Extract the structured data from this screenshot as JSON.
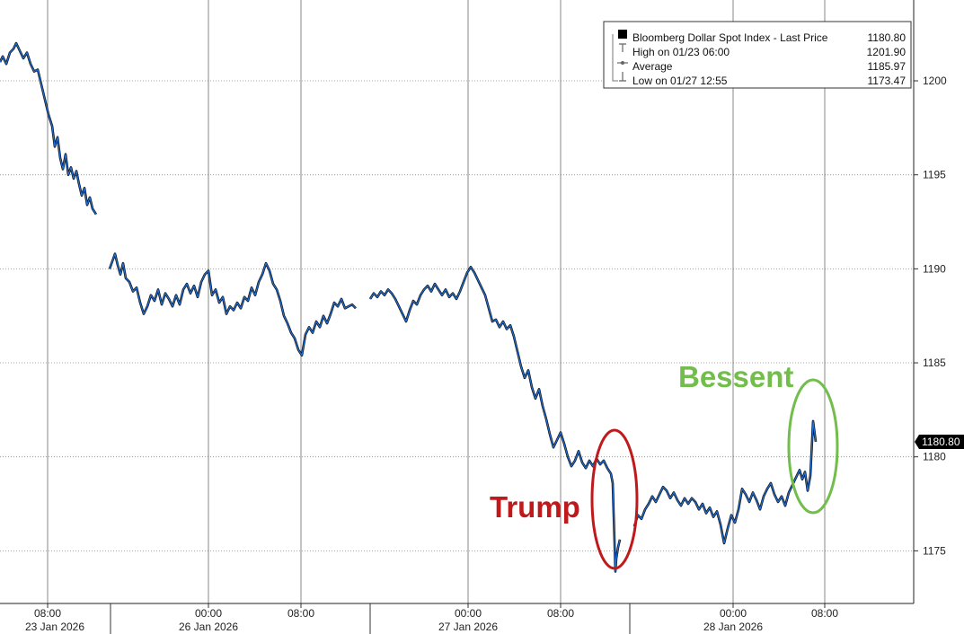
{
  "chart_data": {
    "type": "line",
    "series": [
      {
        "name": "Bloomberg Dollar Spot Index - Last Price",
        "color": "#1f6fd6",
        "segments": [
          [
            [
              0,
              1201.0
            ],
            [
              3,
              1201.3
            ],
            [
              7,
              1200.9
            ],
            [
              11,
              1201.5
            ],
            [
              15,
              1201.7
            ],
            [
              18,
              1202.0
            ],
            [
              22,
              1201.6
            ],
            [
              26,
              1201.2
            ],
            [
              30,
              1201.5
            ],
            [
              34,
              1200.9
            ],
            [
              38,
              1200.5
            ],
            [
              42,
              1200.6
            ],
            [
              46,
              1199.8
            ],
            [
              50,
              1199.0
            ],
            [
              54,
              1198.2
            ],
            [
              58,
              1197.6
            ],
            [
              61,
              1196.5
            ],
            [
              64,
              1197.0
            ],
            [
              67,
              1195.9
            ],
            [
              70,
              1195.3
            ],
            [
              73,
              1196.1
            ],
            [
              76,
              1195.0
            ],
            [
              79,
              1195.4
            ],
            [
              82,
              1194.8
            ],
            [
              85,
              1195.2
            ],
            [
              88,
              1194.5
            ],
            [
              91,
              1193.9
            ],
            [
              94,
              1194.3
            ],
            [
              97,
              1193.4
            ],
            [
              100,
              1193.8
            ],
            [
              103,
              1193.2
            ],
            [
              107,
              1192.9
            ]
          ],
          [
            [
              122,
              1190.0
            ],
            [
              125,
              1190.4
            ],
            [
              128,
              1190.8
            ],
            [
              131,
              1190.2
            ],
            [
              134,
              1189.7
            ],
            [
              137,
              1190.3
            ],
            [
              140,
              1189.5
            ],
            [
              144,
              1189.3
            ],
            [
              148,
              1188.8
            ],
            [
              152,
              1189.0
            ],
            [
              156,
              1188.2
            ],
            [
              160,
              1187.6
            ],
            [
              164,
              1188.0
            ],
            [
              168,
              1188.6
            ],
            [
              172,
              1188.3
            ],
            [
              176,
              1188.9
            ],
            [
              180,
              1188.1
            ],
            [
              184,
              1188.7
            ],
            [
              188,
              1188.4
            ],
            [
              192,
              1188.0
            ],
            [
              196,
              1188.6
            ],
            [
              200,
              1188.1
            ],
            [
              204,
              1188.9
            ],
            [
              208,
              1189.2
            ],
            [
              212,
              1188.7
            ],
            [
              216,
              1189.1
            ],
            [
              220,
              1188.5
            ],
            [
              224,
              1189.3
            ],
            [
              228,
              1189.7
            ],
            [
              232,
              1189.9
            ],
            [
              236,
              1188.6
            ],
            [
              240,
              1188.9
            ],
            [
              244,
              1188.2
            ],
            [
              248,
              1188.5
            ],
            [
              252,
              1187.6
            ],
            [
              256,
              1188.0
            ],
            [
              260,
              1187.8
            ],
            [
              264,
              1188.2
            ],
            [
              268,
              1187.9
            ],
            [
              272,
              1188.5
            ],
            [
              276,
              1188.3
            ],
            [
              280,
              1189.0
            ],
            [
              284,
              1188.6
            ],
            [
              288,
              1189.3
            ],
            [
              292,
              1189.7
            ],
            [
              296,
              1190.3
            ],
            [
              300,
              1189.9
            ],
            [
              304,
              1189.2
            ],
            [
              308,
              1188.9
            ],
            [
              312,
              1188.3
            ],
            [
              316,
              1187.5
            ],
            [
              320,
              1187.1
            ],
            [
              324,
              1186.6
            ],
            [
              328,
              1186.3
            ],
            [
              332,
              1185.7
            ],
            [
              336,
              1185.4
            ],
            [
              340,
              1186.5
            ],
            [
              344,
              1186.9
            ],
            [
              348,
              1186.6
            ],
            [
              352,
              1187.2
            ],
            [
              356,
              1186.9
            ],
            [
              360,
              1187.5
            ],
            [
              364,
              1187.1
            ],
            [
              368,
              1187.6
            ],
            [
              372,
              1188.2
            ],
            [
              376,
              1188.0
            ],
            [
              380,
              1188.4
            ],
            [
              384,
              1187.9
            ],
            [
              388,
              1188.0
            ],
            [
              392,
              1188.1
            ],
            [
              396,
              1187.9
            ]
          ],
          [
            [
              412,
              1188.4
            ],
            [
              416,
              1188.7
            ],
            [
              420,
              1188.5
            ],
            [
              424,
              1188.8
            ],
            [
              428,
              1188.6
            ],
            [
              432,
              1188.9
            ],
            [
              436,
              1188.7
            ],
            [
              440,
              1188.4
            ],
            [
              444,
              1188.0
            ],
            [
              448,
              1187.6
            ],
            [
              452,
              1187.2
            ],
            [
              456,
              1187.8
            ],
            [
              460,
              1188.3
            ],
            [
              464,
              1188.1
            ],
            [
              468,
              1188.6
            ],
            [
              472,
              1188.9
            ],
            [
              476,
              1189.1
            ],
            [
              480,
              1188.8
            ],
            [
              484,
              1189.2
            ],
            [
              488,
              1188.9
            ],
            [
              492,
              1188.6
            ],
            [
              496,
              1188.9
            ],
            [
              500,
              1188.5
            ],
            [
              504,
              1188.7
            ],
            [
              508,
              1188.4
            ],
            [
              512,
              1188.8
            ],
            [
              516,
              1189.3
            ],
            [
              520,
              1189.8
            ],
            [
              524,
              1190.1
            ],
            [
              528,
              1189.8
            ],
            [
              532,
              1189.4
            ],
            [
              536,
              1189.0
            ],
            [
              540,
              1188.6
            ],
            [
              544,
              1187.9
            ],
            [
              548,
              1187.2
            ],
            [
              552,
              1187.3
            ],
            [
              556,
              1186.9
            ],
            [
              560,
              1187.2
            ],
            [
              564,
              1186.8
            ],
            [
              568,
              1187.0
            ],
            [
              572,
              1186.4
            ],
            [
              576,
              1185.6
            ],
            [
              580,
              1184.8
            ],
            [
              584,
              1184.2
            ],
            [
              588,
              1184.6
            ],
            [
              592,
              1183.7
            ],
            [
              596,
              1183.1
            ],
            [
              600,
              1183.6
            ],
            [
              604,
              1182.7
            ],
            [
              608,
              1182.0
            ],
            [
              612,
              1181.2
            ],
            [
              616,
              1180.5
            ],
            [
              620,
              1180.9
            ],
            [
              624,
              1181.3
            ],
            [
              628,
              1180.7
            ],
            [
              632,
              1180.0
            ],
            [
              636,
              1179.5
            ],
            [
              640,
              1179.8
            ],
            [
              644,
              1180.3
            ],
            [
              648,
              1179.7
            ],
            [
              652,
              1179.4
            ],
            [
              656,
              1179.8
            ],
            [
              660,
              1179.5
            ],
            [
              664,
              1179.9
            ],
            [
              668,
              1179.6
            ],
            [
              672,
              1179.8
            ],
            [
              676,
              1179.4
            ],
            [
              680,
              1179.1
            ],
            [
              682,
              1178.6
            ],
            [
              683,
              1177.0
            ],
            [
              684,
              1175.5
            ],
            [
              685,
              1173.9
            ],
            [
              686,
              1174.6
            ],
            [
              688,
              1175.2
            ],
            [
              690,
              1175.6
            ]
          ],
          [
            [
              706,
              1176.3
            ],
            [
              710,
              1176.9
            ],
            [
              714,
              1176.7
            ],
            [
              718,
              1177.2
            ],
            [
              722,
              1177.5
            ],
            [
              726,
              1177.9
            ],
            [
              730,
              1177.6
            ],
            [
              734,
              1178.0
            ],
            [
              738,
              1178.4
            ],
            [
              742,
              1178.2
            ],
            [
              746,
              1177.8
            ],
            [
              750,
              1178.1
            ],
            [
              754,
              1177.7
            ],
            [
              758,
              1177.4
            ],
            [
              762,
              1177.8
            ],
            [
              766,
              1177.5
            ],
            [
              770,
              1177.8
            ],
            [
              774,
              1177.6
            ],
            [
              778,
              1177.2
            ],
            [
              782,
              1177.5
            ],
            [
              786,
              1177.0
            ],
            [
              790,
              1177.3
            ],
            [
              794,
              1176.8
            ],
            [
              798,
              1177.1
            ],
            [
              802,
              1176.4
            ],
            [
              806,
              1175.4
            ],
            [
              810,
              1176.2
            ],
            [
              814,
              1176.9
            ],
            [
              818,
              1176.5
            ],
            [
              822,
              1177.2
            ],
            [
              826,
              1178.3
            ],
            [
              830,
              1178.0
            ],
            [
              834,
              1177.6
            ],
            [
              838,
              1178.1
            ],
            [
              842,
              1177.7
            ],
            [
              846,
              1177.2
            ],
            [
              850,
              1177.9
            ],
            [
              854,
              1178.3
            ],
            [
              858,
              1178.6
            ],
            [
              862,
              1178.0
            ],
            [
              866,
              1177.6
            ],
            [
              870,
              1177.9
            ],
            [
              874,
              1177.4
            ],
            [
              878,
              1178.1
            ],
            [
              882,
              1178.5
            ],
            [
              886,
              1178.9
            ],
            [
              890,
              1179.3
            ],
            [
              893,
              1178.8
            ],
            [
              896,
              1179.2
            ],
            [
              899,
              1178.2
            ],
            [
              902,
              1179.0
            ],
            [
              905,
              1181.9
            ],
            [
              908,
              1180.8
            ]
          ]
        ]
      }
    ],
    "ylim": [
      1172.2,
      1204.3
    ],
    "yticks": [
      1175,
      1180,
      1185,
      1190,
      1195,
      1200
    ],
    "ytick_labels": [
      "1175",
      "1180",
      "1185",
      "1190",
      "1195",
      "1200"
    ],
    "xticks": [
      {
        "label": "08:00",
        "date": "23 Jan 2026"
      },
      {
        "label": "00:00",
        "date": "26 Jan 2026"
      },
      {
        "label": "08:00",
        "date": ""
      },
      {
        "label": "00:00",
        "date": "27 Jan 2026"
      },
      {
        "label": "08:00",
        "date": ""
      },
      {
        "label": "00:00",
        "date": "28 Jan 2026"
      },
      {
        "label": "08:00",
        "date": ""
      }
    ],
    "legend": {
      "placement": "top-right",
      "rows": [
        {
          "label": "Bloomberg Dollar Spot Index - Last Price",
          "value": "1180.80"
        },
        {
          "label": "High on 01/23 06:00",
          "value": "1201.90"
        },
        {
          "label": "Average",
          "value": "1185.97"
        },
        {
          "label": "Low on 01/27 12:55",
          "value": "1173.47"
        }
      ]
    },
    "last_price_tag": "1180.80",
    "annotations": [
      {
        "text": "Trump",
        "color": "#c0191c"
      },
      {
        "text": "Bessent",
        "color": "#72bd4b"
      }
    ],
    "grid": true
  }
}
